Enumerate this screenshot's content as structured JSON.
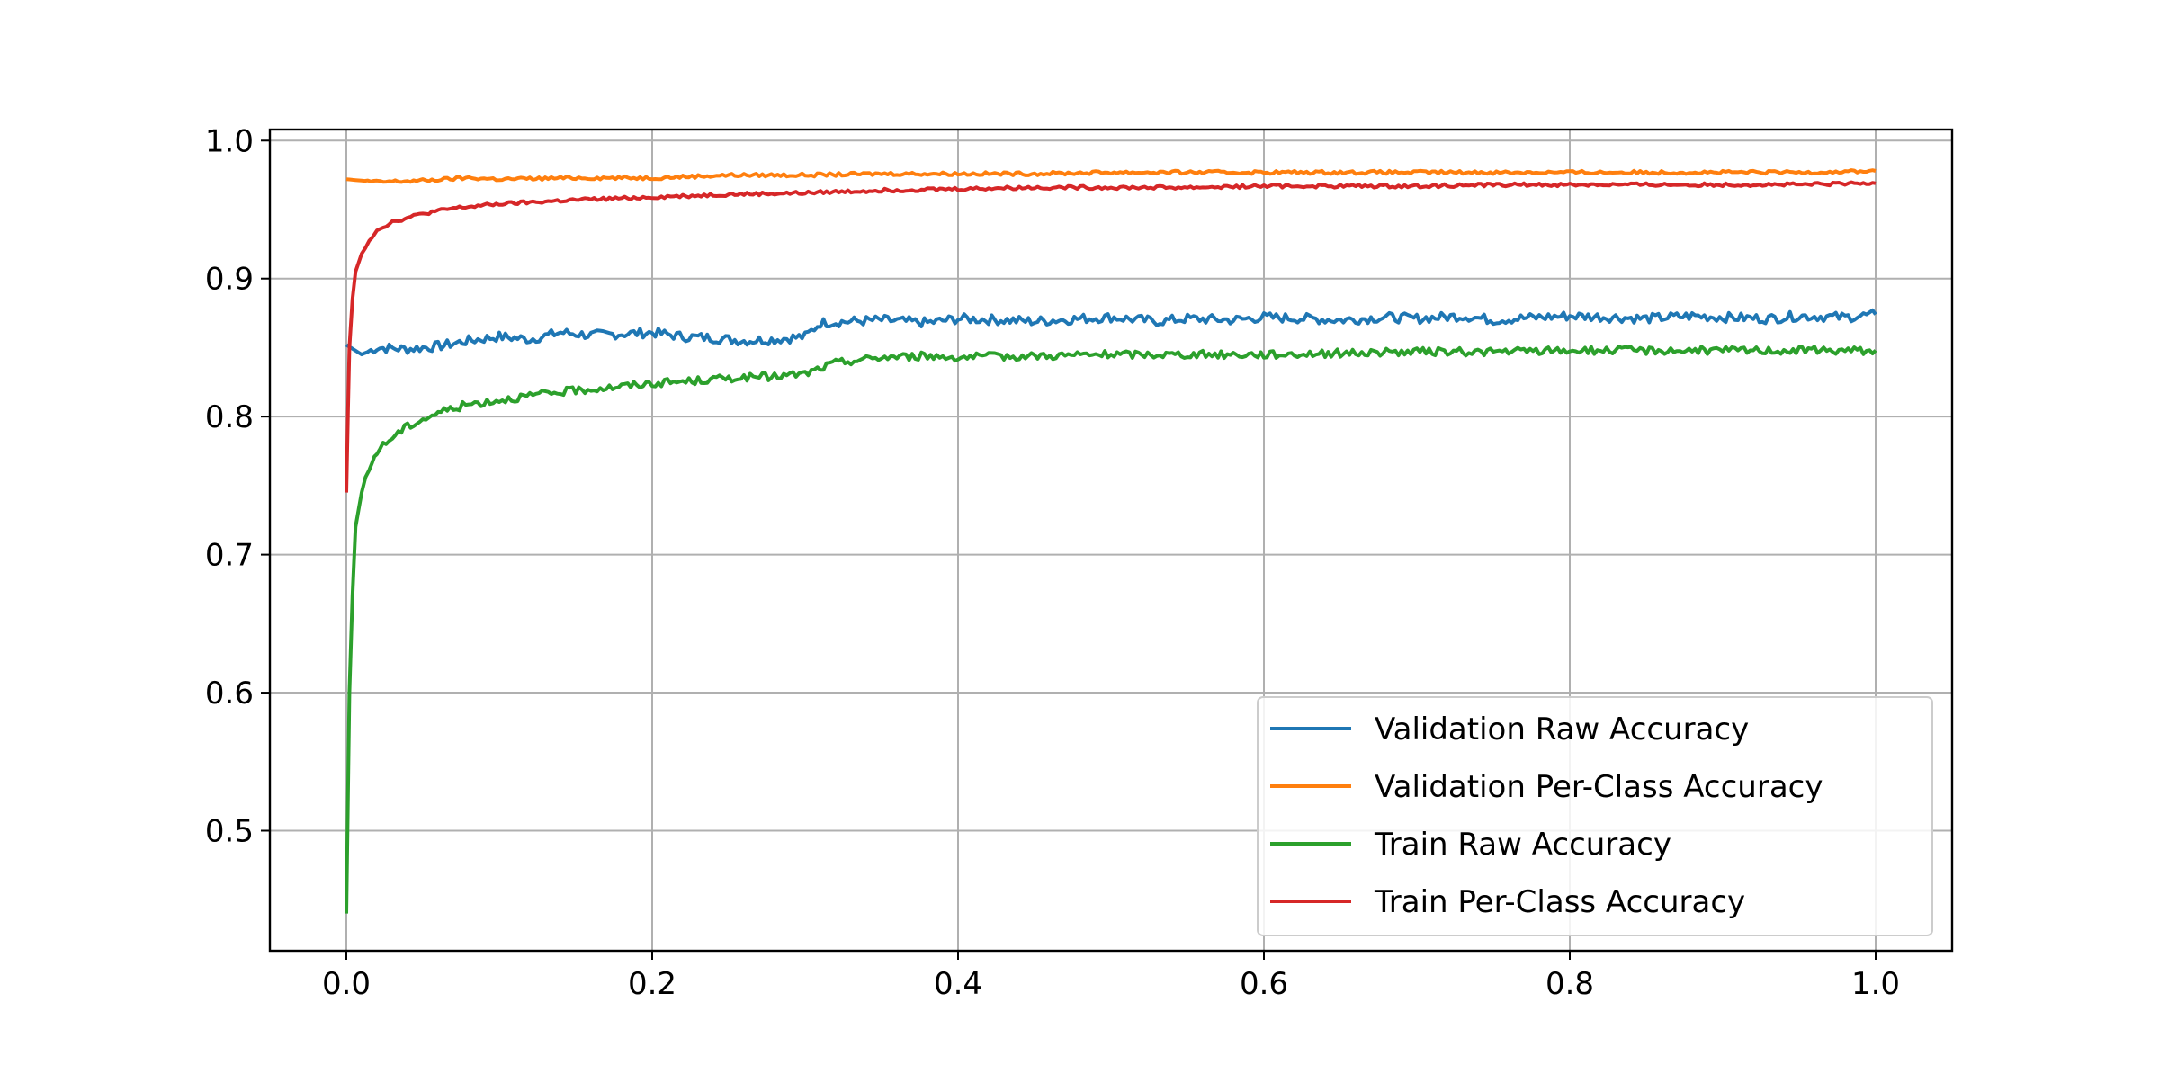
{
  "chart_data": {
    "type": "line",
    "title": "",
    "xlabel": "",
    "ylabel": "",
    "xlim": [
      -0.05,
      1.05
    ],
    "ylim": [
      0.413,
      1.008
    ],
    "xticks": [
      "0.0",
      "0.2",
      "0.4",
      "0.6",
      "0.8",
      "1.0"
    ],
    "yticks": [
      "0.5",
      "0.6",
      "0.7",
      "0.8",
      "0.9",
      "1.0"
    ],
    "grid": true,
    "legend_position": "bottom-right",
    "series": [
      {
        "name": "Validation Raw Accuracy",
        "color": "#1f77b4",
        "x": [
          0.0,
          0.01,
          0.02,
          0.04,
          0.06,
          0.08,
          0.1,
          0.12,
          0.14,
          0.16,
          0.18,
          0.2,
          0.22,
          0.24,
          0.26,
          0.28,
          0.3,
          0.31,
          0.33,
          0.35,
          0.38,
          0.4,
          0.43,
          0.45,
          0.48,
          0.5,
          0.53,
          0.55,
          0.58,
          0.6,
          0.63,
          0.65,
          0.68,
          0.7,
          0.73,
          0.75,
          0.78,
          0.8,
          0.83,
          0.85,
          0.88,
          0.9,
          0.93,
          0.95,
          0.98,
          1.0
        ],
        "values": [
          0.852,
          0.845,
          0.85,
          0.849,
          0.851,
          0.855,
          0.858,
          0.856,
          0.861,
          0.859,
          0.86,
          0.861,
          0.858,
          0.857,
          0.855,
          0.856,
          0.858,
          0.868,
          0.869,
          0.87,
          0.868,
          0.871,
          0.87,
          0.869,
          0.871,
          0.872,
          0.869,
          0.871,
          0.87,
          0.872,
          0.871,
          0.87,
          0.872,
          0.871,
          0.873,
          0.87,
          0.872,
          0.873,
          0.872,
          0.871,
          0.873,
          0.872,
          0.871,
          0.873,
          0.872,
          0.874
        ]
      },
      {
        "name": "Validation Per-Class Accuracy",
        "color": "#ff7f0e",
        "x": [
          0.0,
          0.02,
          0.05,
          0.08,
          0.1,
          0.15,
          0.2,
          0.25,
          0.3,
          0.35,
          0.4,
          0.45,
          0.5,
          0.55,
          0.6,
          0.65,
          0.7,
          0.75,
          0.8,
          0.85,
          0.9,
          0.95,
          1.0
        ],
        "values": [
          0.972,
          0.97,
          0.971,
          0.973,
          0.972,
          0.973,
          0.973,
          0.975,
          0.975,
          0.976,
          0.976,
          0.976,
          0.977,
          0.977,
          0.977,
          0.977,
          0.977,
          0.977,
          0.977,
          0.977,
          0.977,
          0.977,
          0.978
        ]
      },
      {
        "name": "Train Raw Accuracy",
        "color": "#2ca02c",
        "x": [
          0.0,
          0.001,
          0.002,
          0.004,
          0.006,
          0.01,
          0.015,
          0.02,
          0.03,
          0.04,
          0.05,
          0.06,
          0.08,
          0.1,
          0.12,
          0.15,
          0.18,
          0.2,
          0.23,
          0.25,
          0.28,
          0.3,
          0.32,
          0.35,
          0.38,
          0.4,
          0.45,
          0.5,
          0.55,
          0.6,
          0.65,
          0.7,
          0.75,
          0.8,
          0.85,
          0.9,
          0.95,
          1.0
        ],
        "values": [
          0.44,
          0.52,
          0.6,
          0.67,
          0.72,
          0.745,
          0.762,
          0.775,
          0.785,
          0.793,
          0.798,
          0.803,
          0.809,
          0.812,
          0.815,
          0.819,
          0.822,
          0.824,
          0.826,
          0.828,
          0.829,
          0.831,
          0.839,
          0.843,
          0.844,
          0.843,
          0.844,
          0.845,
          0.845,
          0.845,
          0.846,
          0.847,
          0.847,
          0.848,
          0.848,
          0.848,
          0.848,
          0.848
        ]
      },
      {
        "name": "Train Per-Class Accuracy",
        "color": "#d62728",
        "x": [
          0.0,
          0.001,
          0.002,
          0.004,
          0.006,
          0.01,
          0.015,
          0.02,
          0.03,
          0.04,
          0.05,
          0.07,
          0.1,
          0.15,
          0.2,
          0.25,
          0.3,
          0.35,
          0.4,
          0.45,
          0.5,
          0.55,
          0.6,
          0.65,
          0.7,
          0.75,
          0.8,
          0.85,
          0.9,
          0.95,
          1.0
        ],
        "values": [
          0.745,
          0.8,
          0.85,
          0.885,
          0.905,
          0.918,
          0.928,
          0.935,
          0.941,
          0.944,
          0.947,
          0.951,
          0.954,
          0.957,
          0.959,
          0.961,
          0.962,
          0.964,
          0.965,
          0.966,
          0.966,
          0.966,
          0.967,
          0.967,
          0.967,
          0.968,
          0.968,
          0.968,
          0.968,
          0.968,
          0.969
        ]
      }
    ]
  }
}
